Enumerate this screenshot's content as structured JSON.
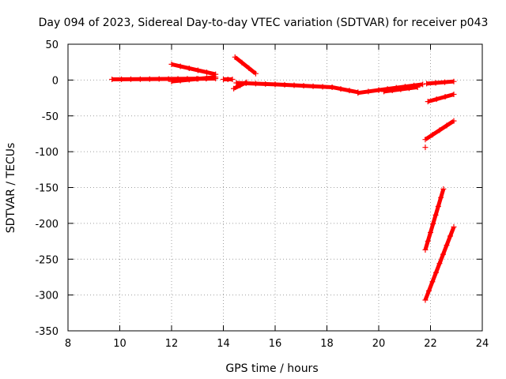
{
  "chart_data": {
    "type": "scatter",
    "title": "Day 094 of 2023, Sidereal Day-to-day VTEC variation (SDTVAR) for receiver p043",
    "xlabel": "GPS time / hours",
    "ylabel": "SDTVAR / TECUs",
    "xlim": [
      8,
      24
    ],
    "ylim": [
      -350,
      50
    ],
    "xticks": [
      8,
      10,
      12,
      14,
      16,
      18,
      20,
      22,
      24
    ],
    "yticks": [
      50,
      0,
      -50,
      -100,
      -150,
      -200,
      -250,
      -300,
      -350
    ],
    "grid": true,
    "marker": "+",
    "series_color": "#ff0000",
    "segments": [
      {
        "from": [
          9.7,
          1
        ],
        "to": [
          13.7,
          2
        ]
      },
      {
        "from": [
          12.0,
          22
        ],
        "to": [
          13.7,
          8
        ]
      },
      {
        "from": [
          12.0,
          -2
        ],
        "to": [
          13.7,
          4
        ]
      },
      {
        "from": [
          14.0,
          1
        ],
        "to": [
          14.35,
          1
        ]
      },
      {
        "from": [
          14.45,
          32
        ],
        "to": [
          15.25,
          9
        ]
      },
      {
        "from": [
          14.4,
          -12
        ],
        "to": [
          14.9,
          -3
        ]
      },
      {
        "from": [
          14.5,
          -4
        ],
        "to": [
          16.0,
          -6
        ]
      },
      {
        "from": [
          16.0,
          -6
        ],
        "to": [
          18.2,
          -10
        ]
      },
      {
        "from": [
          18.2,
          -10
        ],
        "to": [
          19.2,
          -17
        ]
      },
      {
        "from": [
          19.2,
          -18
        ],
        "to": [
          20.0,
          -14
        ]
      },
      {
        "from": [
          20.0,
          -14
        ],
        "to": [
          21.7,
          -6
        ]
      },
      {
        "from": [
          20.2,
          -16
        ],
        "to": [
          21.5,
          -10
        ]
      },
      {
        "from": [
          21.85,
          -5
        ],
        "to": [
          22.9,
          -2
        ]
      },
      {
        "from": [
          21.9,
          -30
        ],
        "to": [
          22.9,
          -20
        ]
      },
      {
        "from": [
          21.8,
          -83
        ],
        "to": [
          22.9,
          -57
        ]
      },
      {
        "from": [
          21.8,
          -237
        ],
        "to": [
          22.5,
          -152
        ]
      },
      {
        "from": [
          21.8,
          -307
        ],
        "to": [
          22.9,
          -205
        ]
      }
    ],
    "points": [
      [
        21.8,
        -94
      ]
    ]
  }
}
